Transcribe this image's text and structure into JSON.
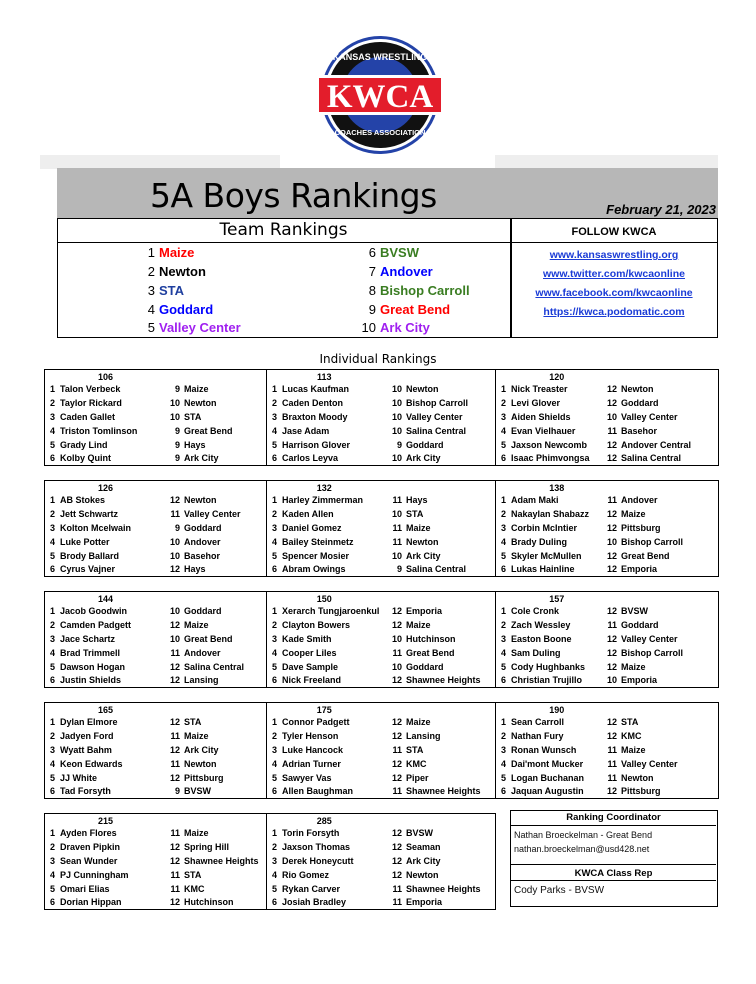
{
  "logo": {
    "top_text": "KANSAS WRESTLING",
    "main_text": "KWCA",
    "bottom_text": "COACHES ASSOCIATION",
    "colors": {
      "red": "#e31d2b",
      "blue": "#2443a8",
      "black": "#111111"
    }
  },
  "header": {
    "title": "5A Boys Rankings",
    "date": "February 21, 2023"
  },
  "team_rankings": {
    "heading": "Team Rankings",
    "teams": [
      {
        "rank": "1",
        "name": "Maize",
        "color": "#ff0000"
      },
      {
        "rank": "2",
        "name": "Newton",
        "color": "#000000"
      },
      {
        "rank": "3",
        "name": "STA",
        "color": "#1f3f9f"
      },
      {
        "rank": "4",
        "name": "Goddard",
        "color": "#0000ff"
      },
      {
        "rank": "5",
        "name": "Valley Center",
        "color": "#a020f0"
      },
      {
        "rank": "6",
        "name": "BVSW",
        "color": "#3a7d22"
      },
      {
        "rank": "7",
        "name": "Andover",
        "color": "#0000ff"
      },
      {
        "rank": "8",
        "name": "Bishop Carroll",
        "color": "#3a7d22"
      },
      {
        "rank": "9",
        "name": "Great Bend",
        "color": "#ff0000"
      },
      {
        "rank": "10",
        "name": "Ark City",
        "color": "#a020f0"
      }
    ]
  },
  "follow": {
    "heading": "FOLLOW KWCA",
    "links": [
      "www.kansaswrestling.org",
      "www.twitter.com/kwcaonline",
      "www.facebook.com/kwcaonline",
      "https://kwca.podomatic.com"
    ]
  },
  "individual": {
    "heading": "Individual Rankings",
    "weights": [
      {
        "weight": "106",
        "rows": [
          [
            "1",
            "Talon Verbeck",
            "9",
            "Maize"
          ],
          [
            "2",
            "Taylor Rickard",
            "10",
            "Newton"
          ],
          [
            "3",
            "Caden Gallet",
            "10",
            "STA"
          ],
          [
            "4",
            "Triston Tomlinson",
            "9",
            "Great Bend"
          ],
          [
            "5",
            "Grady Lind",
            "9",
            "Hays"
          ],
          [
            "6",
            "Kolby Quint",
            "9",
            "Ark City"
          ]
        ]
      },
      {
        "weight": "113",
        "rows": [
          [
            "1",
            "Lucas Kaufman",
            "10",
            "Newton"
          ],
          [
            "2",
            "Caden Denton",
            "10",
            "Bishop Carroll"
          ],
          [
            "3",
            "Braxton Moody",
            "10",
            "Valley Center"
          ],
          [
            "4",
            "Jase Adam",
            "10",
            "Salina Central"
          ],
          [
            "5",
            "Harrison Glover",
            "9",
            "Goddard"
          ],
          [
            "6",
            "Carlos Leyva",
            "10",
            "Ark City"
          ]
        ]
      },
      {
        "weight": "120",
        "rows": [
          [
            "1",
            "Nick Treaster",
            "12",
            "Newton"
          ],
          [
            "2",
            "Levi Glover",
            "12",
            "Goddard"
          ],
          [
            "3",
            "Aiden Shields",
            "10",
            "Valley Center"
          ],
          [
            "4",
            "Evan Vielhauer",
            "11",
            "Basehor"
          ],
          [
            "5",
            "Jaxson Newcomb",
            "12",
            "Andover Central"
          ],
          [
            "6",
            "Isaac Phimvongsa",
            "12",
            "Salina Central"
          ]
        ]
      },
      {
        "weight": "126",
        "rows": [
          [
            "1",
            "AB Stokes",
            "12",
            "Newton"
          ],
          [
            "2",
            "Jett Schwartz",
            "11",
            "Valley Center"
          ],
          [
            "3",
            "Kolton Mcelwain",
            "9",
            "Goddard"
          ],
          [
            "4",
            "Luke Potter",
            "10",
            "Andover"
          ],
          [
            "5",
            "Brody Ballard",
            "10",
            "Basehor"
          ],
          [
            "6",
            "Cyrus Vajner",
            "12",
            "Hays"
          ]
        ]
      },
      {
        "weight": "132",
        "rows": [
          [
            "1",
            "Harley Zimmerman",
            "11",
            "Hays"
          ],
          [
            "2",
            "Kaden Allen",
            "10",
            "STA"
          ],
          [
            "3",
            "Daniel Gomez",
            "11",
            "Maize"
          ],
          [
            "4",
            "Bailey Steinmetz",
            "11",
            "Newton"
          ],
          [
            "5",
            "Spencer Mosier",
            "10",
            "Ark City"
          ],
          [
            "6",
            "Abram Owings",
            "9",
            "Salina Central"
          ]
        ]
      },
      {
        "weight": "138",
        "rows": [
          [
            "1",
            "Adam Maki",
            "11",
            "Andover"
          ],
          [
            "2",
            "Nakaylan Shabazz",
            "12",
            "Maize"
          ],
          [
            "3",
            "Corbin McIntier",
            "12",
            "Pittsburg"
          ],
          [
            "4",
            "Brady Duling",
            "10",
            "Bishop Carroll"
          ],
          [
            "5",
            "Skyler McMullen",
            "12",
            "Great Bend"
          ],
          [
            "6",
            "Lukas Hainline",
            "12",
            "Emporia"
          ]
        ]
      },
      {
        "weight": "144",
        "rows": [
          [
            "1",
            "Jacob Goodwin",
            "10",
            "Goddard"
          ],
          [
            "2",
            "Camden Padgett",
            "12",
            "Maize"
          ],
          [
            "3",
            "Jace Schartz",
            "10",
            "Great Bend"
          ],
          [
            "4",
            "Brad Trimmell",
            "11",
            "Andover"
          ],
          [
            "5",
            "Dawson Hogan",
            "12",
            "Salina Central"
          ],
          [
            "6",
            "Justin Shields",
            "12",
            "Lansing"
          ]
        ]
      },
      {
        "weight": "150",
        "rows": [
          [
            "1",
            "Xerarch Tungjaroenkul",
            "12",
            "Emporia"
          ],
          [
            "2",
            "Clayton Bowers",
            "12",
            "Maize"
          ],
          [
            "3",
            "Kade Smith",
            "10",
            "Hutchinson"
          ],
          [
            "4",
            "Cooper Liles",
            "11",
            "Great Bend"
          ],
          [
            "5",
            "Dave Sample",
            "10",
            "Goddard"
          ],
          [
            "6",
            "Nick Freeland",
            "12",
            "Shawnee Heights"
          ]
        ]
      },
      {
        "weight": "157",
        "rows": [
          [
            "1",
            "Cole Cronk",
            "12",
            "BVSW"
          ],
          [
            "2",
            "Zach Wessley",
            "11",
            "Goddard"
          ],
          [
            "3",
            "Easton Boone",
            "12",
            "Valley Center"
          ],
          [
            "4",
            "Sam Duling",
            "12",
            "Bishop Carroll"
          ],
          [
            "5",
            "Cody Hughbanks",
            "12",
            "Maize"
          ],
          [
            "6",
            "Christian Trujillo",
            "10",
            "Emporia"
          ]
        ]
      },
      {
        "weight": "165",
        "rows": [
          [
            "1",
            "Dylan Elmore",
            "12",
            "STA"
          ],
          [
            "2",
            "Jadyen Ford",
            "11",
            "Maize"
          ],
          [
            "3",
            "Wyatt Bahm",
            "12",
            "Ark City"
          ],
          [
            "4",
            "Keon Edwards",
            "11",
            "Newton"
          ],
          [
            "5",
            "JJ White",
            "12",
            "Pittsburg"
          ],
          [
            "6",
            "Tad Forsyth",
            "9",
            "BVSW"
          ]
        ]
      },
      {
        "weight": "175",
        "rows": [
          [
            "1",
            "Connor Padgett",
            "12",
            "Maize"
          ],
          [
            "2",
            "Tyler Henson",
            "12",
            "Lansing"
          ],
          [
            "3",
            "Luke Hancock",
            "11",
            "STA"
          ],
          [
            "4",
            "Adrian Turner",
            "12",
            "KMC"
          ],
          [
            "5",
            "Sawyer Vas",
            "12",
            "Piper"
          ],
          [
            "6",
            "Allen Baughman",
            "11",
            "Shawnee Heights"
          ]
        ]
      },
      {
        "weight": "190",
        "rows": [
          [
            "1",
            "Sean Carroll",
            "12",
            "STA"
          ],
          [
            "2",
            "Nathan Fury",
            "12",
            "KMC"
          ],
          [
            "3",
            "Ronan Wunsch",
            "11",
            "Maize"
          ],
          [
            "4",
            "Dai'mont Mucker",
            "11",
            "Valley Center"
          ],
          [
            "5",
            "Logan Buchanan",
            "11",
            "Newton"
          ],
          [
            "6",
            "Jaquan Augustin",
            "12",
            "Pittsburg"
          ]
        ]
      },
      {
        "weight": "215",
        "rows": [
          [
            "1",
            "Ayden Flores",
            "11",
            "Maize"
          ],
          [
            "2",
            "Draven Pipkin",
            "12",
            "Spring Hill"
          ],
          [
            "3",
            "Sean Wunder",
            "12",
            "Shawnee Heights"
          ],
          [
            "4",
            "PJ Cunningham",
            "11",
            "STA"
          ],
          [
            "5",
            "Omari Elias",
            "11",
            "KMC"
          ],
          [
            "6",
            "Dorian Hippan",
            "12",
            "Hutchinson"
          ]
        ]
      },
      {
        "weight": "285",
        "rows": [
          [
            "1",
            "Torin Forsyth",
            "12",
            "BVSW"
          ],
          [
            "2",
            "Jaxson Thomas",
            "12",
            "Seaman"
          ],
          [
            "3",
            "Derek Honeycutt",
            "12",
            "Ark City"
          ],
          [
            "4",
            "Rio Gomez",
            "12",
            "Newton"
          ],
          [
            "5",
            "Rykan Carver",
            "11",
            "Shawnee Heights"
          ],
          [
            "6",
            "Josiah Bradley",
            "11",
            "Emporia"
          ]
        ]
      }
    ]
  },
  "coordinator": {
    "heading": "Ranking Coordinator",
    "name": "Nathan Broeckelman - Great Bend",
    "email": "nathan.broeckelman@usd428.net",
    "rep_heading": "KWCA Class Rep",
    "rep": "Cody Parks - BVSW"
  }
}
